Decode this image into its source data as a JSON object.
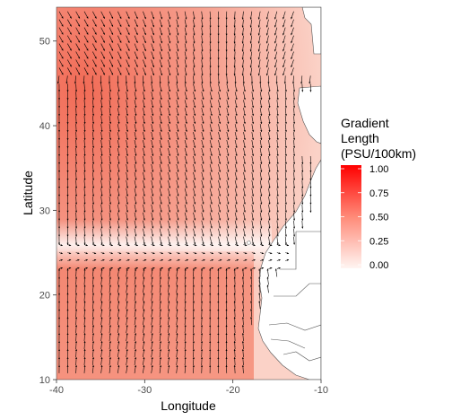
{
  "chart_data": {
    "type": "vector-field-map",
    "xlabel": "Longitude",
    "ylabel": "Latitude",
    "xlim": [
      -40,
      -10
    ],
    "ylim": [
      10,
      54
    ],
    "x_ticks": [
      -40,
      -30,
      -20,
      -10
    ],
    "y_ticks": [
      10,
      20,
      30,
      40,
      50
    ],
    "grid": false,
    "legend": {
      "title_lines": [
        "Gradient",
        "Length",
        "(PSU/100km)"
      ],
      "placement": "right",
      "ticks": [
        "1.00",
        "0.75",
        "0.50",
        "0.25",
        "0.00"
      ],
      "range": [
        0,
        1
      ],
      "colors": {
        "low": "#fff5f2",
        "high": "#ff0000"
      }
    },
    "background_color": "#f07a65",
    "land_color": "#ffffff",
    "coast_color": "#555555",
    "arrow_color": "#000000",
    "front_latitude": 24.5
  }
}
